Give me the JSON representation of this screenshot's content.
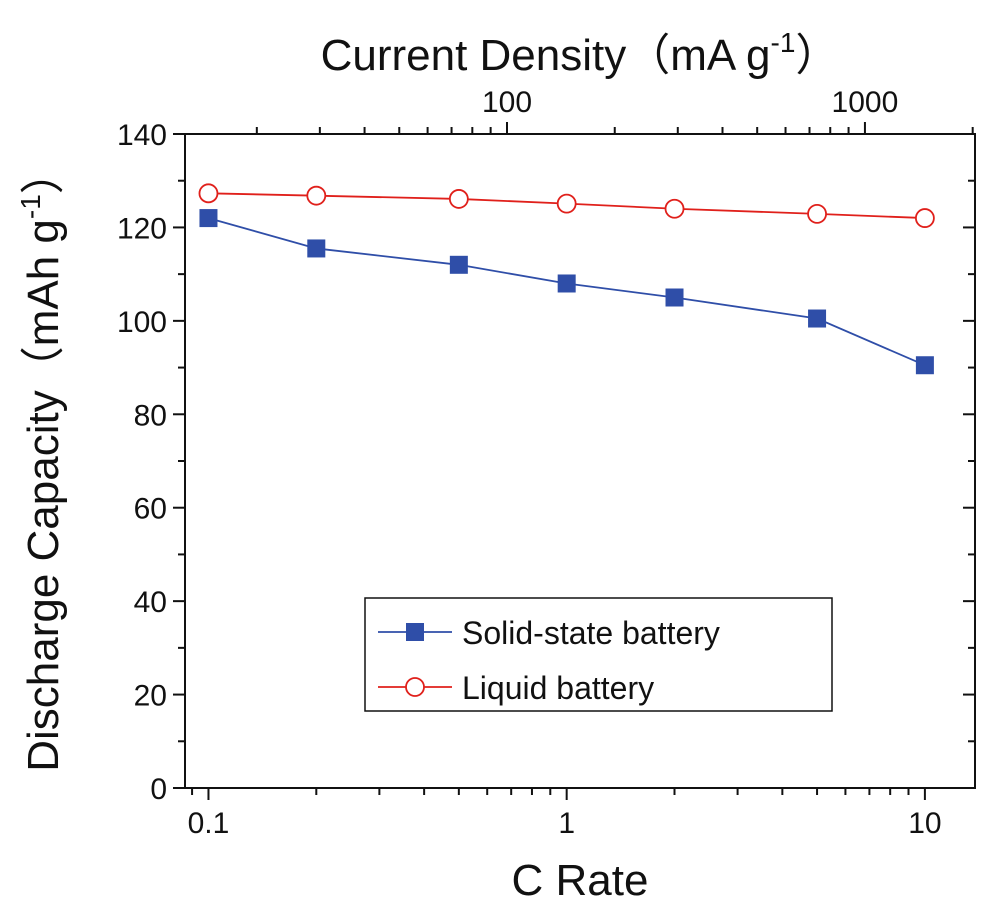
{
  "chart_data": {
    "type": "line",
    "xlabel": "C Rate",
    "ylabel": [
      "Discharge Capacity（mAh g",
      "-1",
      "）"
    ],
    "x2label": [
      "Current Density（mA g",
      "-1",
      "）"
    ],
    "x": [
      0.1,
      0.2,
      0.5,
      1,
      2,
      5,
      10
    ],
    "xscale": "log",
    "xlim": [
      0.086,
      13.8
    ],
    "xticks": [
      0.1,
      1,
      10
    ],
    "x2lim": [
      12.6,
      2030
    ],
    "x2ticks": [
      100,
      1000
    ],
    "ylim": [
      0,
      140
    ],
    "yticks": [
      0,
      20,
      40,
      60,
      80,
      100,
      120,
      140
    ],
    "legend": "lower-center",
    "series": [
      {
        "name": "Solid-state battery",
        "color": "#2f4ea8",
        "marker": "square",
        "values": [
          122,
          115.5,
          112,
          108,
          105,
          100.5,
          90.5
        ]
      },
      {
        "name": "Liquid battery",
        "color": "#e0201b",
        "marker": "open-circle",
        "values": [
          127.3,
          126.8,
          126.1,
          125.1,
          124,
          122.9,
          122
        ]
      }
    ]
  }
}
